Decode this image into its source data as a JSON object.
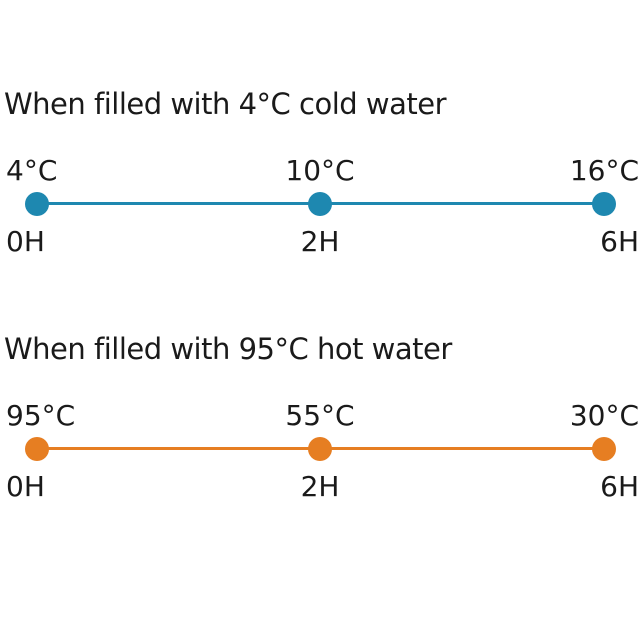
{
  "colors": {
    "cold_accent": "#1e88b0",
    "hot_accent": "#e67e22"
  },
  "cold": {
    "title": "When filled with 4°C cold water",
    "stops": [
      {
        "temp": "4°C",
        "time": "0H"
      },
      {
        "temp": "10°C",
        "time": "2H"
      },
      {
        "temp": "16°C",
        "time": "6H"
      }
    ]
  },
  "hot": {
    "title": "When filled with 95°C hot water",
    "stops": [
      {
        "temp": "95°C",
        "time": "0H"
      },
      {
        "temp": "55°C",
        "time": "2H"
      },
      {
        "temp": "30°C",
        "time": "6H"
      }
    ]
  }
}
